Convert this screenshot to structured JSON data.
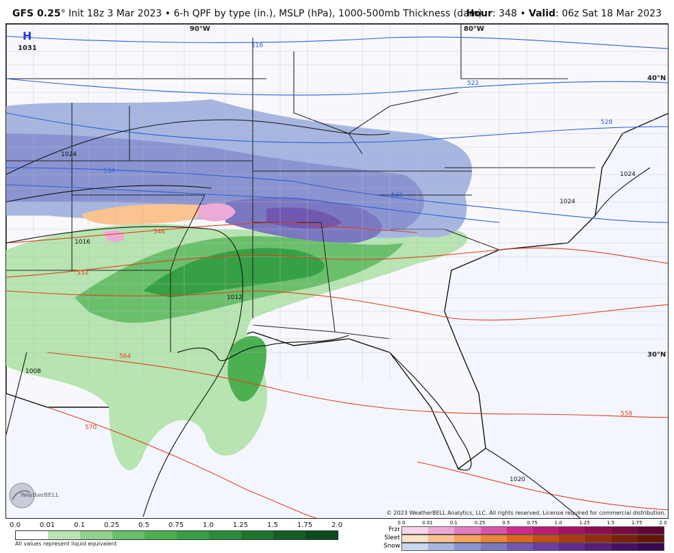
{
  "header": {
    "model": "GFS 0.25",
    "degree": "°",
    "description": " Init 18z 3 Mar 2023 • 6-h QPF by type (in.), MSLP (hPa), 1000-500mb Thickness (dam)",
    "hour_label": "Hour",
    "hour_value": ": 348 • ",
    "valid_label": "Valid",
    "valid_value": ": 06z Sat 18 Mar 2023"
  },
  "map_labels": {
    "lon_90": "90°W",
    "lon_80": "80°W",
    "lat_40": "40°N",
    "lat_30": "30°N",
    "high": "H",
    "high_value": "1031"
  },
  "contours": {
    "thickness": [
      "516",
      "522",
      "534",
      "540",
      "546",
      "552",
      "558",
      "564",
      "570",
      "528"
    ],
    "pressure": [
      "1024",
      "1016",
      "1012",
      "1008",
      "1020",
      "1024",
      "1024"
    ]
  },
  "copyright": "© 2023 WeatherBELL Analytics, LLC. All rights reserved. License required for commercial distribution.",
  "logo_text": "WeatherBELL",
  "legend": {
    "qpf_ticks": [
      "0.0",
      "0.01",
      "0.1",
      "0.25",
      "0.5",
      "0.75",
      "1.0",
      "1.25",
      "1.5",
      "1.75",
      "2.0"
    ],
    "qpf_colors": [
      "#ffffff",
      "#b7e4b0",
      "#8fd08b",
      "#6abf6b",
      "#4caf50",
      "#36a044",
      "#2a8c3a",
      "#1f7530",
      "#155e26",
      "#0b4a1c"
    ],
    "qpf_note": "All values represent liquid equivalent",
    "ptype_ticks": [
      "0.0",
      "0.01",
      "0.1",
      "0.25",
      "0.5",
      "0.75",
      "1.0",
      "1.25",
      "1.5",
      "1.75",
      "2.0"
    ],
    "frzr_label": "Frzr",
    "sleet_label": "Sleet",
    "snow_label": "Snow",
    "frzr_colors": [
      "#f7d6ec",
      "#eeaad6",
      "#e57ec0",
      "#dc52aa",
      "#d02a8e",
      "#c01a78",
      "#a81264",
      "#900c52",
      "#780842",
      "#600434"
    ],
    "sleet_colors": [
      "#fde2c4",
      "#fbc38f",
      "#f9a35b",
      "#f08336",
      "#e0641e",
      "#c84c16",
      "#b03a10",
      "#982a0c",
      "#801e08",
      "#681404"
    ],
    "snow_colors": [
      "#c8d6ee",
      "#a6b6e0",
      "#8a94d0",
      "#7a78c0",
      "#7058b0",
      "#6a3ea0",
      "#622a8c",
      "#561c78",
      "#481064",
      "#3a0850"
    ]
  }
}
